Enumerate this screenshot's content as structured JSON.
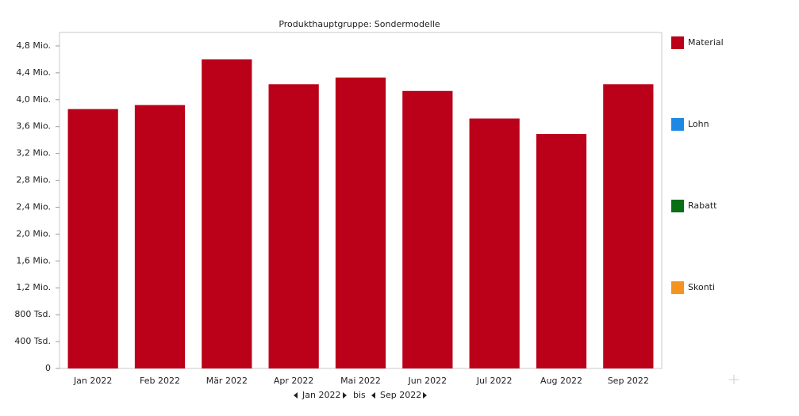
{
  "chart_data": {
    "type": "bar",
    "title": "Produkthauptgruppe: Sondermodelle",
    "categories": [
      "Jan 2022",
      "Feb 2022",
      "Mär 2022",
      "Apr 2022",
      "Mai 2022",
      "Jun 2022",
      "Jul 2022",
      "Aug 2022",
      "Sep 2022"
    ],
    "series": [
      {
        "name": "Material",
        "color": "#bb0019",
        "values": [
          3860000,
          3920000,
          4600000,
          4230000,
          4330000,
          4130000,
          3720000,
          3490000,
          4230000
        ]
      },
      {
        "name": "Lohn",
        "color": "#1e88e5",
        "values": [
          null,
          null,
          null,
          null,
          null,
          null,
          null,
          null,
          null
        ]
      },
      {
        "name": "Rabatt",
        "color": "#0a6e14",
        "values": [
          null,
          null,
          null,
          null,
          null,
          null,
          null,
          null,
          null
        ]
      },
      {
        "name": "Skonti",
        "color": "#f6921e",
        "values": [
          null,
          null,
          null,
          null,
          null,
          null,
          null,
          null,
          null
        ]
      }
    ],
    "ylim": [
      0,
      5000000
    ],
    "yticks": [
      0,
      {
        "value": 400000,
        "label": "400 Tsd."
      },
      {
        "value": 800000,
        "label": "800 Tsd."
      },
      {
        "value": 1200000,
        "label": "1,2 Mio."
      },
      {
        "value": 1600000,
        "label": "1,6 Mio."
      },
      {
        "value": 2000000,
        "label": "2,0 Mio."
      },
      {
        "value": 2400000,
        "label": "2,4 Mio."
      },
      {
        "value": 2800000,
        "label": "2,8 Mio."
      },
      {
        "value": 3200000,
        "label": "3,2 Mio."
      },
      {
        "value": 3600000,
        "label": "3,6 Mio."
      },
      {
        "value": 4000000,
        "label": "4,0 Mio."
      },
      {
        "value": 4400000,
        "label": "4,4 Mio."
      },
      {
        "value": 4800000,
        "label": "4,8 Mio."
      }
    ],
    "legend": "right",
    "range_selector": {
      "from": "Jan 2022",
      "separator": "bis",
      "to": "Sep 2022"
    }
  }
}
